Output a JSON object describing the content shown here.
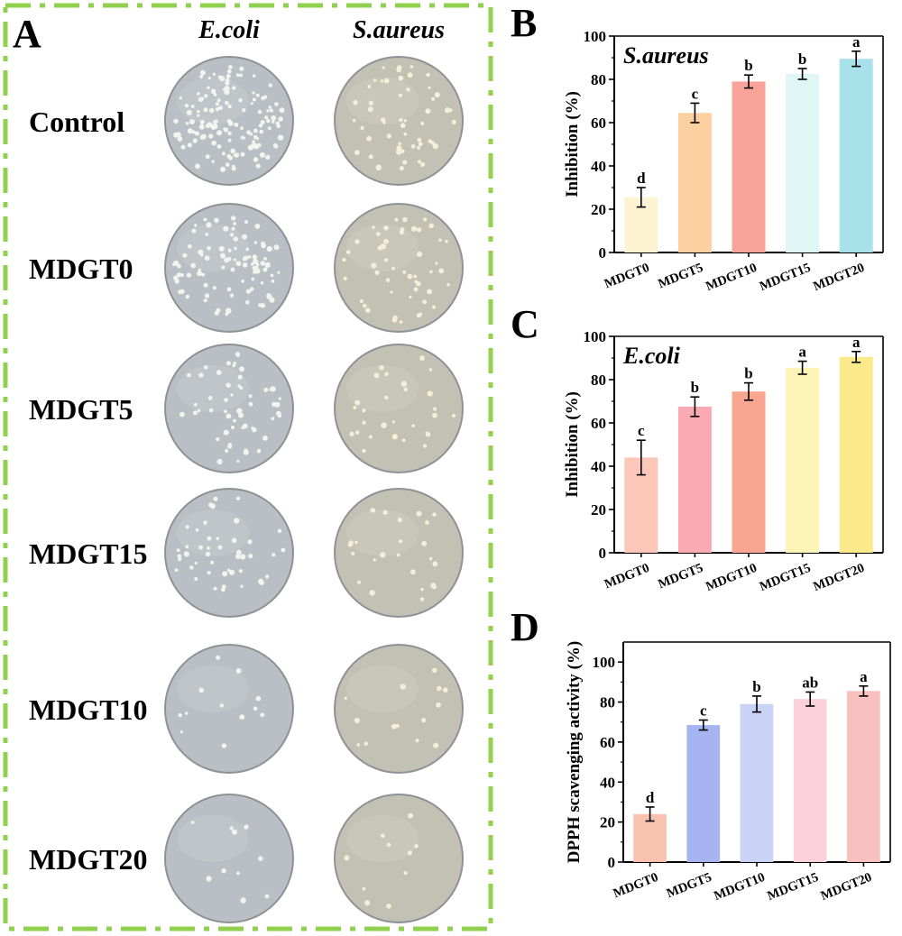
{
  "panel_a": {
    "letter": "A",
    "columns": [
      "E.coli",
      "S.aureus"
    ],
    "rows": [
      "Control",
      "MDGT0",
      "MDGT5",
      "MDGT15",
      "MDGT10",
      "MDGT20"
    ],
    "colors": {
      "border": "#92d050",
      "plate_ecoli": "#b9bfc4",
      "plate_saureus": "#c2c1b3"
    }
  },
  "chart_data": [
    {
      "letter": "B",
      "type": "bar",
      "annotation": "S.aureus",
      "ylabel": "Inhibition (%)",
      "xlabel": "",
      "ylim": [
        0,
        100
      ],
      "yticks": [
        0,
        20,
        40,
        60,
        80,
        100
      ],
      "categories": [
        "MDGT0",
        "MDGT5",
        "MDGT10",
        "MDGT15",
        "MDGT20"
      ],
      "values": [
        25.5,
        64.5,
        79,
        82.5,
        89.5
      ],
      "errors": [
        4.5,
        4.5,
        3,
        2.5,
        3.5
      ],
      "labels": [
        "d",
        "c",
        "b",
        "b",
        "a"
      ],
      "colors": [
        "#fdf3d2",
        "#fdd0a2",
        "#f9a39a",
        "#e0f6f4",
        "#a8e1ea"
      ]
    },
    {
      "letter": "C",
      "type": "bar",
      "annotation": "E.coli",
      "ylabel": "Inhibition (%)",
      "xlabel": "",
      "ylim": [
        0,
        100
      ],
      "yticks": [
        0,
        20,
        40,
        60,
        80,
        100
      ],
      "categories": [
        "MDGT0",
        "MDGT5",
        "MDGT10",
        "MDGT15",
        "MDGT20"
      ],
      "values": [
        44,
        67.5,
        74.5,
        85.5,
        90.5
      ],
      "errors": [
        8,
        4.5,
        4,
        3,
        2.5
      ],
      "labels": [
        "c",
        "b",
        "b",
        "a",
        "a"
      ],
      "colors": [
        "#fcc7b8",
        "#fba9b2",
        "#faa58f",
        "#fdf4b8",
        "#fce98a"
      ]
    },
    {
      "letter": "D",
      "type": "bar",
      "annotation": "",
      "ylabel": "DPPH scavenging activity (%)",
      "xlabel": "",
      "ylim": [
        0,
        110
      ],
      "yticks": [
        0,
        20,
        40,
        60,
        80,
        100
      ],
      "categories": [
        "MDGT0",
        "MDGT5",
        "MDGT10",
        "MDGT15",
        "MDGT20"
      ],
      "values": [
        24,
        68.5,
        79,
        81.5,
        85.5
      ],
      "errors": [
        3.5,
        2.5,
        4,
        3.5,
        2.5
      ],
      "labels": [
        "d",
        "c",
        "b",
        "ab",
        "a"
      ],
      "colors": [
        "#f9c2b0",
        "#a6b4f2",
        "#c8d3f6",
        "#fbd0da",
        "#f8c1bf"
      ]
    }
  ]
}
